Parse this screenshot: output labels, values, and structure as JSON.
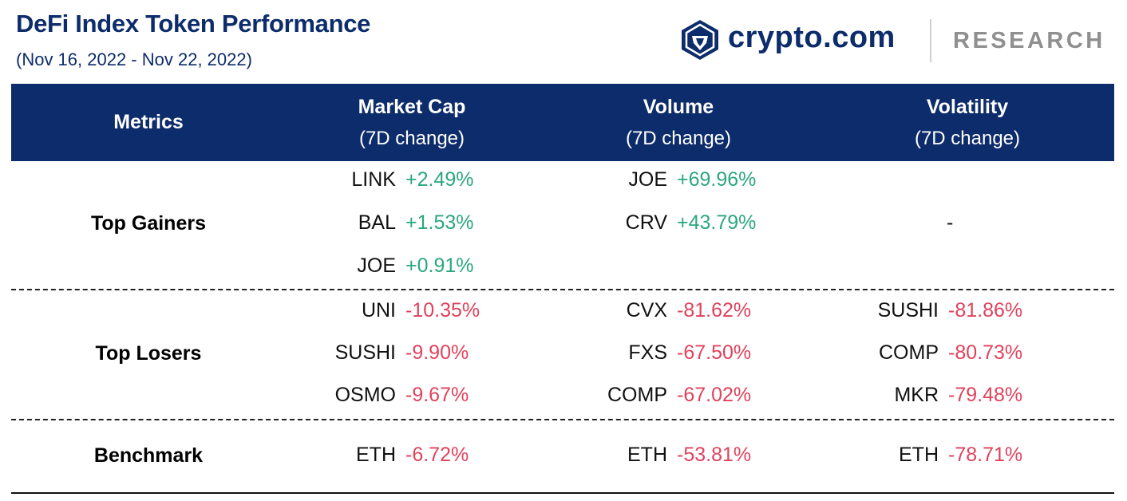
{
  "title": "DeFi Index Token Performance",
  "subtitle": "(Nov 16, 2022 - Nov 22, 2022)",
  "brand": {
    "name": "crypto.com",
    "section": "RESEARCH"
  },
  "colors": {
    "header_bg": "#0d2c6b",
    "positive": "#2ba77d",
    "negative": "#e0425c"
  },
  "table": {
    "headers": [
      {
        "title": "Metrics",
        "sub": ""
      },
      {
        "title": "Market Cap",
        "sub": "(7D change)"
      },
      {
        "title": "Volume",
        "sub": "(7D change)"
      },
      {
        "title": "Volatility",
        "sub": "(7D change)"
      }
    ],
    "rows": [
      {
        "label": "Top Gainers",
        "market_cap": [
          {
            "token": "LINK",
            "change": "+2.49%"
          },
          {
            "token": "BAL",
            "change": "+1.53%"
          },
          {
            "token": "JOE",
            "change": "+0.91%"
          }
        ],
        "volume": [
          {
            "token": "JOE",
            "change": "+69.96%"
          },
          {
            "token": "CRV",
            "change": "+43.79%"
          }
        ],
        "volatility_empty": "-"
      },
      {
        "label": "Top Losers",
        "market_cap": [
          {
            "token": "UNI",
            "change": "-10.35%"
          },
          {
            "token": "SUSHI",
            "change": "-9.90%"
          },
          {
            "token": "OSMO",
            "change": "-9.67%"
          }
        ],
        "volume": [
          {
            "token": "CVX",
            "change": "-81.62%"
          },
          {
            "token": "FXS",
            "change": "-67.50%"
          },
          {
            "token": "COMP",
            "change": "-67.02%"
          }
        ],
        "volatility": [
          {
            "token": "SUSHI",
            "change": "-81.86%"
          },
          {
            "token": "COMP",
            "change": "-80.73%"
          },
          {
            "token": "MKR",
            "change": "-79.48%"
          }
        ]
      },
      {
        "label": "Benchmark",
        "market_cap": [
          {
            "token": "ETH",
            "change": "-6.72%"
          }
        ],
        "volume": [
          {
            "token": "ETH",
            "change": "-53.81%"
          }
        ],
        "volatility": [
          {
            "token": "ETH",
            "change": "-78.71%"
          }
        ]
      }
    ]
  }
}
